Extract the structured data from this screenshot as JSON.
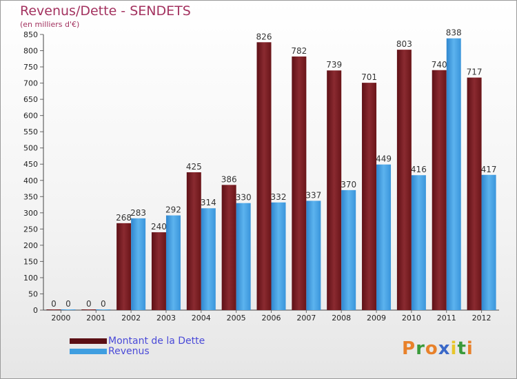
{
  "title": "Revenus/Dette - SENDETS",
  "subtitle": "(en milliers d'€)",
  "logo": {
    "letters": [
      "P",
      "r",
      "o",
      "x",
      "i",
      "t",
      "i"
    ],
    "colors": [
      "#e8812a",
      "#3a9a3a",
      "#e8812a",
      "#3a68c8",
      "#e8c62a",
      "#3a9a3a",
      "#e8812a"
    ]
  },
  "colors": {
    "dette": "#7a1f25",
    "revenus": "#3f9ee0"
  },
  "chart_data": {
    "type": "bar",
    "categories": [
      "2000",
      "2001",
      "2002",
      "2003",
      "2004",
      "2005",
      "2006",
      "2007",
      "2008",
      "2009",
      "2010",
      "2011",
      "2012"
    ],
    "series": [
      {
        "name": "Montant de la Dette",
        "values": [
          0,
          0,
          268,
          240,
          425,
          386,
          826,
          782,
          739,
          701,
          803,
          740,
          717
        ]
      },
      {
        "name": "Revenus",
        "values": [
          0,
          0,
          283,
          292,
          314,
          330,
          332,
          337,
          370,
          449,
          416,
          838,
          417
        ]
      }
    ],
    "ylim": [
      0,
      850
    ],
    "yticks": [
      0,
      50,
      100,
      150,
      200,
      250,
      300,
      350,
      400,
      450,
      500,
      550,
      600,
      650,
      700,
      750,
      800,
      850
    ],
    "grid": false,
    "legend_position": "bottom-left"
  }
}
